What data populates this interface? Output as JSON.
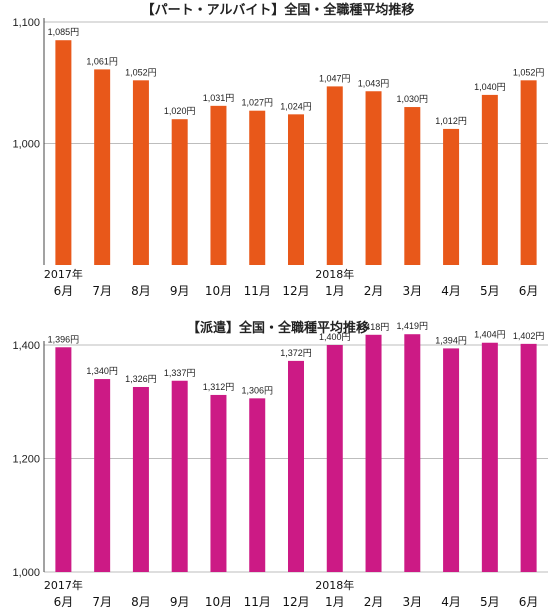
{
  "chart_data": [
    {
      "type": "bar",
      "title": "【パート・アルバイト】全国・全職種平均推移",
      "categories": [
        "6月",
        "7月",
        "8月",
        "9月",
        "10月",
        "11月",
        "12月",
        "1月",
        "2月",
        "3月",
        "4月",
        "5月",
        "6月"
      ],
      "year_labels": [
        {
          "index": 0,
          "text": "2017年"
        },
        {
          "index": 7,
          "text": "2018年"
        }
      ],
      "values": [
        1085,
        1061,
        1052,
        1020,
        1031,
        1027,
        1024,
        1047,
        1043,
        1030,
        1012,
        1040,
        1052
      ],
      "data_labels": [
        "1,085円",
        "1,061円",
        "1,052円",
        "1,020円",
        "1,031円",
        "1,027円",
        "1,024円",
        "1,047円",
        "1,043円",
        "1,030円",
        "1,012円",
        "1,040円",
        "1,052円"
      ],
      "ylim": [
        900,
        1100
      ],
      "yticks": [
        {
          "value": 1000,
          "label": "1,000"
        },
        {
          "value": 1100,
          "label": "1,100"
        }
      ],
      "color": "#e8581a",
      "grid": true
    },
    {
      "type": "bar",
      "title": "【派遣】全国・全職種平均推移",
      "categories": [
        "6月",
        "7月",
        "8月",
        "9月",
        "10月",
        "11月",
        "12月",
        "1月",
        "2月",
        "3月",
        "4月",
        "5月",
        "6月"
      ],
      "year_labels": [
        {
          "index": 0,
          "text": "2017年"
        },
        {
          "index": 7,
          "text": "2018年"
        }
      ],
      "values": [
        1396,
        1340,
        1326,
        1337,
        1312,
        1306,
        1372,
        1400,
        1418,
        1419,
        1394,
        1404,
        1402
      ],
      "data_labels": [
        "1,396円",
        "1,340円",
        "1,326円",
        "1,337円",
        "1,312円",
        "1,306円",
        "1,372円",
        "1,400円",
        "1,418円",
        "1,419円",
        "1,394円",
        "1,404円",
        "1,402円"
      ],
      "ylim": [
        1000,
        1400
      ],
      "yticks": [
        {
          "value": 1000,
          "label": "1,000"
        },
        {
          "value": 1200,
          "label": "1,200"
        },
        {
          "value": 1400,
          "label": "1,400"
        }
      ],
      "color": "#cc1a85",
      "grid": true
    }
  ]
}
